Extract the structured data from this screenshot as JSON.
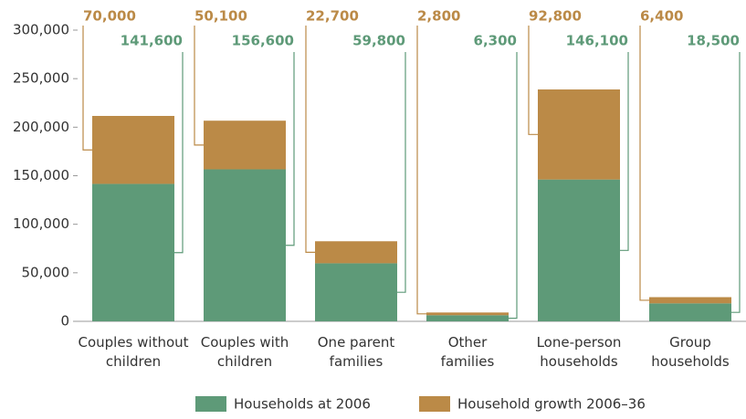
{
  "chart_data": {
    "type": "stacked_bar",
    "categories": [
      "Couples without children",
      "Couples with children",
      "One parent families",
      "Other families",
      "Lone-person households",
      "Group households"
    ],
    "series": [
      {
        "name": "Households at 2006",
        "color": "#5e9a78",
        "values": [
          141600,
          156600,
          59800,
          6300,
          146100,
          18500
        ],
        "value_labels": [
          "141,600",
          "156,600",
          "59,800",
          "6,300",
          "146,100",
          "18,500"
        ]
      },
      {
        "name": "Household growth 2006–36",
        "color": "#bb8a47",
        "values": [
          70000,
          50100,
          22700,
          2800,
          92800,
          6400
        ],
        "value_labels": [
          "70,000",
          "50,100",
          "22,700",
          "2,800",
          "92,800",
          "6,400"
        ]
      }
    ],
    "ylim": [
      0,
      300000
    ],
    "yticks": [
      0,
      {
        "value": 50000,
        "label": "50,000"
      },
      {
        "value": 100000,
        "label": "100,000"
      },
      {
        "value": 150000,
        "label": "150,000"
      },
      {
        "value": 200000,
        "label": "200,000"
      },
      {
        "value": 250000,
        "label": "250,000"
      },
      {
        "value": 300000,
        "label": "300,000"
      }
    ],
    "legend": "bottom"
  }
}
